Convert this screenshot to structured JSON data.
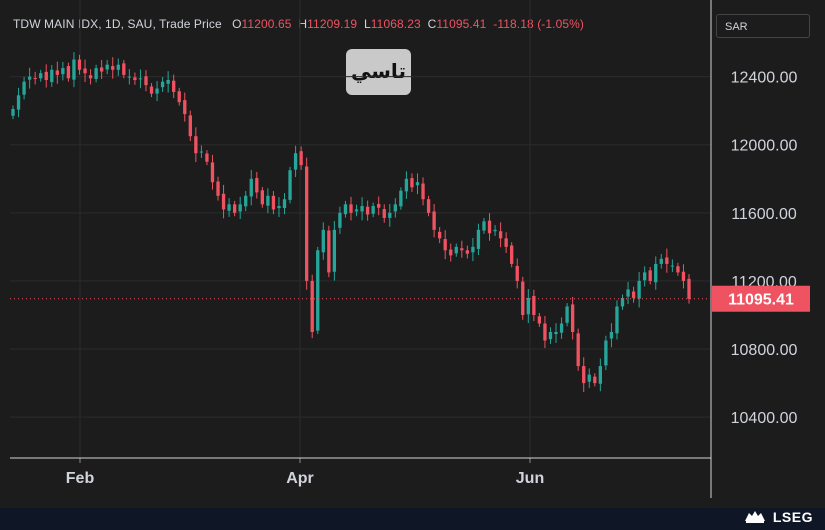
{
  "header": {
    "symbol": "TDW MAIN IDX, 1D, SAU, Trade Price",
    "open_label": "O",
    "open": "11200.65",
    "high_label": "H",
    "high": "11209.19",
    "low_label": "L",
    "low": "11068.23",
    "close_label": "C",
    "close": "11095.41",
    "change": "-118.18 (-1.05%)"
  },
  "currency": "SAR",
  "badge_text": "تاسي",
  "brand": "LSEG",
  "colors": {
    "up": "#26a69a",
    "down": "#ef5361",
    "background": "#1c1c1c",
    "grid": "#2b2b2b",
    "text": "#d1d4dc"
  },
  "chart_data": {
    "type": "candlestick",
    "y_ticks": [
      "10400.00",
      "10800.00",
      "11200.00",
      "11600.00",
      "12000.00",
      "12400.00"
    ],
    "x_ticks": [
      "Feb",
      "Apr",
      "Jun"
    ],
    "ylim": [
      10160,
      12850
    ],
    "grid": true,
    "last_price": "11095.41",
    "closes": [
      12210,
      12290,
      12370,
      12400,
      12390,
      12420,
      12380,
      12440,
      12410,
      12450,
      12390,
      12500,
      12440,
      12420,
      12390,
      12450,
      12430,
      12470,
      12440,
      12470,
      12410,
      12400,
      12380,
      12390,
      12350,
      12300,
      12330,
      12370,
      12380,
      12310,
      12250,
      12180,
      12050,
      11950,
      11960,
      11900,
      11780,
      11700,
      11620,
      11650,
      11600,
      11650,
      11700,
      11800,
      11720,
      11650,
      11700,
      11620,
      11640,
      11680,
      11850,
      11950,
      11880,
      11200,
      10900,
      11380,
      11500,
      11250,
      11500,
      11600,
      11650,
      11600,
      11620,
      11640,
      11590,
      11640,
      11630,
      11570,
      11600,
      11650,
      11730,
      11800,
      11750,
      11780,
      11680,
      11600,
      11500,
      11450,
      11380,
      11350,
      11400,
      11380,
      11360,
      11400,
      11500,
      11550,
      11480,
      11500,
      11450,
      11400,
      11300,
      11200,
      11000,
      11100,
      11000,
      10950,
      10850,
      10900,
      10900,
      10950,
      11050,
      10900,
      10700,
      10600,
      10650,
      10600,
      10700,
      10850,
      10900,
      11050,
      11100,
      11150,
      11100,
      11200,
      11250,
      11200,
      11300,
      11330,
      11300,
      11290,
      11250,
      11200,
      11095
    ]
  }
}
